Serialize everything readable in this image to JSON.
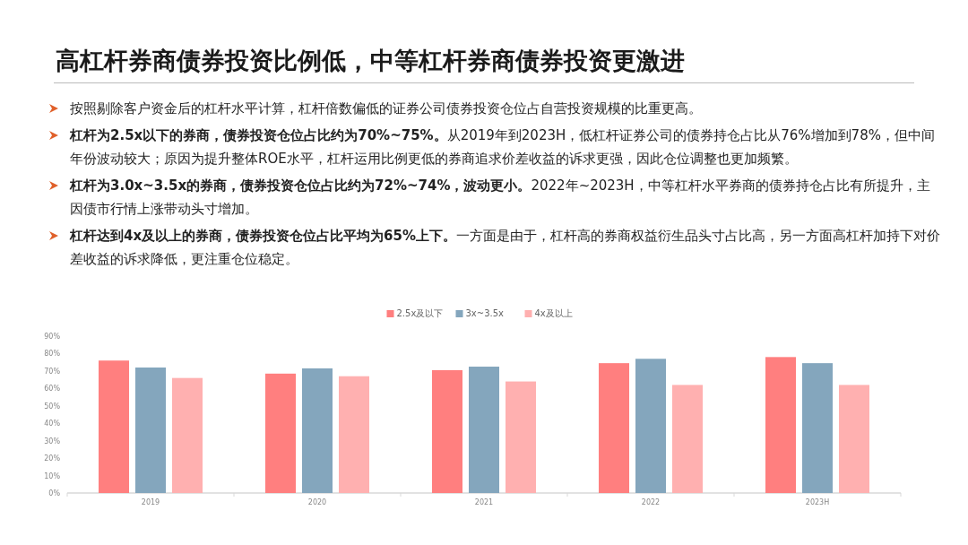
{
  "chart_data": {
    "type": "bar",
    "title": "高杠杆券商债券投资比例低，中等杠杆券商债券投资更激进",
    "annotations": [
      "按照剔除客户资金后的杠杆水平计算，杠杆倍数偏低的证券公司债券投资仓位占自营投资规模的比重更高。",
      "**杠杆为2.5x以下的券商，债券投资仓位占比约为70%~75%。**从2019年到2023H，低杠杆证券公司的债券持仓占比从76%增加到78%，但中间年份波动较大；原因为提升整体ROE水平，杠杆运用比例更低的券商追求价差收益的诉求更强，因此仓位调整也更加频繁。",
      "**杠杆为3.0x~3.5x的券商，债券投资仓位占比约为72%~74%，波动更小。**2022年~2023H，中等杠杆水平券商的债券持仓占比有所提升，主因债市行情上涨带动头寸增加。",
      "**杠杆达到4x及以上的券商，债券投资仓位占比平均为65%上下。**一方面是由于，杠杆高的券商权益衍生品头寸占比高，另一方面高杠杆加持下对价差收益的诉求降低，更注重仓位稳定。"
    ],
    "categories": [
      "2019",
      "2020",
      "2021",
      "2022",
      "2023H"
    ],
    "series": [
      {
        "name": "2.5x及以下",
        "color": "#ff7f7f",
        "values": [
          76,
          68.5,
          70.5,
          74.5,
          78
        ]
      },
      {
        "name": "3x~3.5x",
        "color": "#84a6bd",
        "values": [
          72,
          71.5,
          72.5,
          77,
          74.5
        ]
      },
      {
        "name": "4x及以上",
        "color": "#ffb0b0",
        "values": [
          66,
          67,
          64,
          62,
          62
        ]
      }
    ],
    "ylim": [
      0,
      90
    ],
    "yticks": [
      {
        "value": 0,
        "label": "0%"
      },
      {
        "value": 10,
        "label": "10%"
      },
      {
        "value": 20,
        "label": "20%"
      },
      {
        "value": 30,
        "label": "30%"
      },
      {
        "value": 40,
        "label": "40%"
      },
      {
        "value": 50,
        "label": "50%"
      },
      {
        "value": 60,
        "label": "60%"
      },
      {
        "value": 70,
        "label": "70%"
      },
      {
        "value": 80,
        "label": "80%"
      },
      {
        "value": 90,
        "label": "90%"
      }
    ],
    "legend": "top"
  }
}
